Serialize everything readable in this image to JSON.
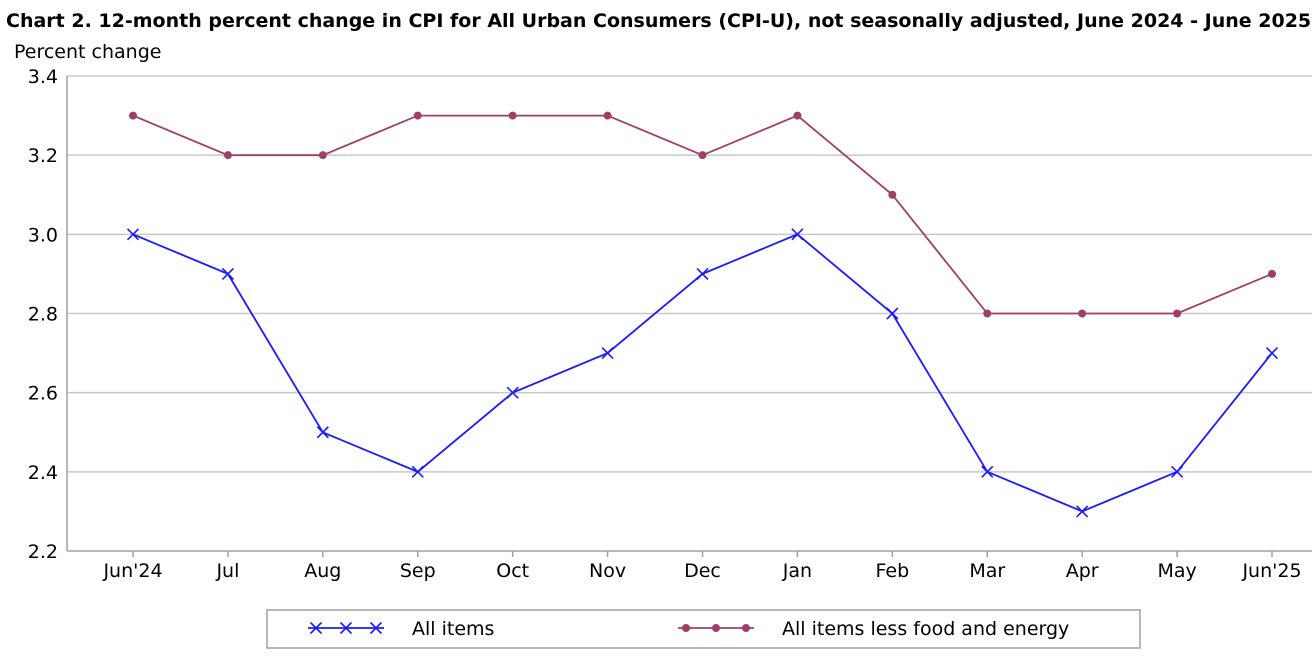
{
  "chart_data": {
    "type": "line",
    "title": "Chart 2. 12-month percent change in CPI for All Urban Consumers (CPI-U), not seasonally adjusted, June 2024 - June 2025",
    "ylabel": "Percent change",
    "xlabel": "",
    "categories": [
      "Jun'24",
      "Jul",
      "Aug",
      "Sep",
      "Oct",
      "Nov",
      "Dec",
      "Jan",
      "Feb",
      "Mar",
      "Apr",
      "May",
      "Jun'25"
    ],
    "ylim": [
      2.2,
      3.4
    ],
    "yticks": [
      "2.2",
      "2.4",
      "2.6",
      "2.8",
      "3.0",
      "3.2",
      "3.4"
    ],
    "grid": true,
    "legend_position": "bottom",
    "series": [
      {
        "name": "All items",
        "color": "#1a1aff",
        "marker": "x",
        "values": [
          3.0,
          2.9,
          2.5,
          2.4,
          2.6,
          2.7,
          2.9,
          3.0,
          2.8,
          2.4,
          2.3,
          2.4,
          2.7
        ]
      },
      {
        "name": "All items less food and energy",
        "color": "#9e3f6a",
        "marker": "circle",
        "values": [
          3.3,
          3.2,
          3.2,
          3.3,
          3.3,
          3.3,
          3.2,
          3.3,
          3.1,
          2.8,
          2.8,
          2.8,
          2.9
        ]
      }
    ]
  }
}
